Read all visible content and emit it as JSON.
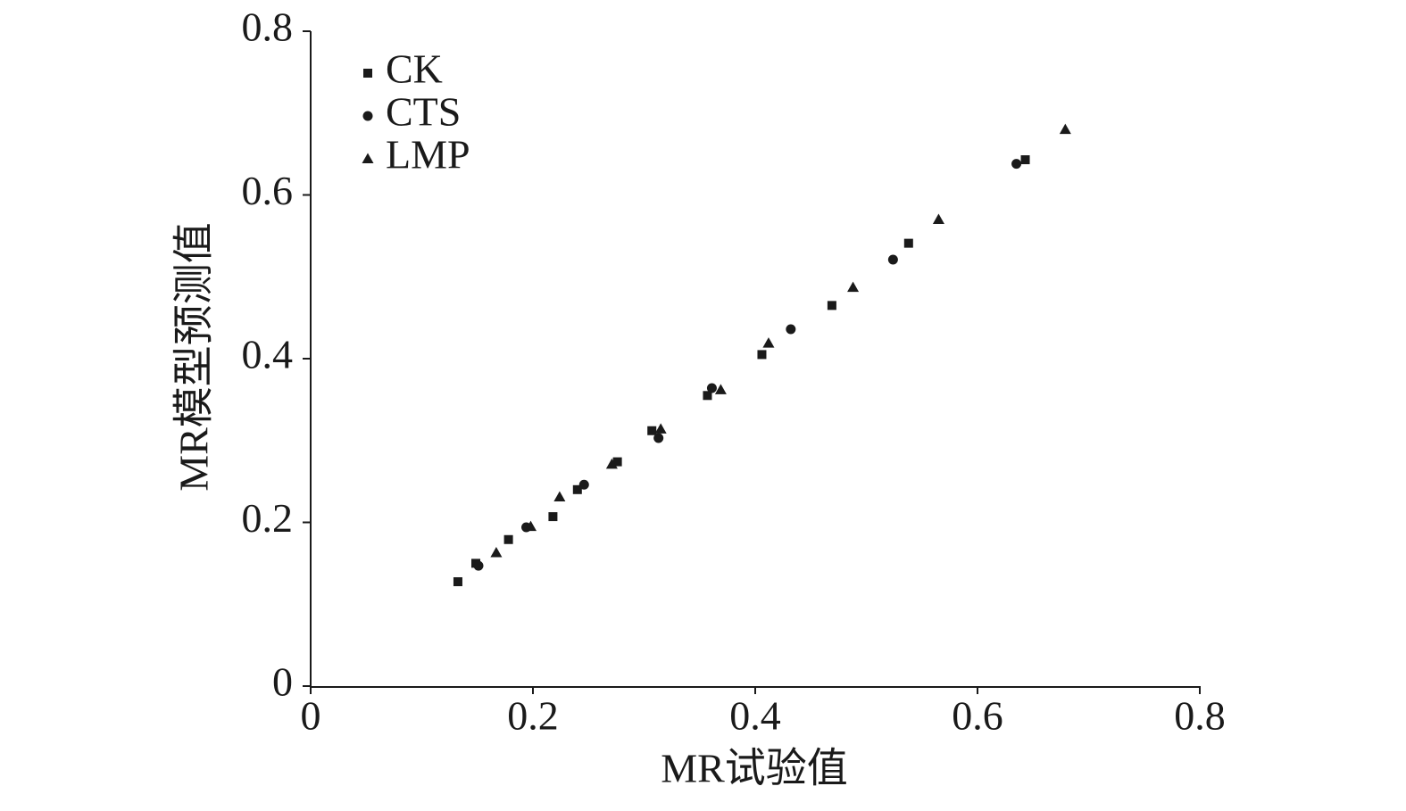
{
  "chart_data": {
    "type": "scatter",
    "x_label": "MR试验值",
    "y_label": "MR模型预测值",
    "xlim": [
      0,
      0.8
    ],
    "ylim": [
      0,
      0.8
    ],
    "xticks": [
      0,
      0.2,
      0.4,
      0.6,
      0.8
    ],
    "yticks": [
      0,
      0.2,
      0.4,
      0.6,
      0.8
    ],
    "grid": false,
    "legend": "top-left",
    "series": [
      {
        "name": "CK",
        "color": "#1a1a1a",
        "marker": "square",
        "x": [
          0.1325,
          0.1486,
          0.178,
          0.218,
          0.24,
          0.276,
          0.307,
          0.357,
          0.406,
          0.469,
          0.538,
          0.643
        ],
        "values": [
          0.1275,
          0.15,
          0.179,
          0.207,
          0.24,
          0.274,
          0.312,
          0.355,
          0.405,
          0.465,
          0.541,
          0.643
        ]
      },
      {
        "name": "CTS",
        "color": "#1a1a1a",
        "marker": "circle",
        "x": [
          0.151,
          0.194,
          0.246,
          0.313,
          0.361,
          0.432,
          0.524,
          0.635
        ],
        "values": [
          0.147,
          0.194,
          0.246,
          0.303,
          0.364,
          0.436,
          0.521,
          0.638
        ]
      },
      {
        "name": "LMP",
        "color": "#1a1a1a",
        "marker": "triangle",
        "x": [
          0.167,
          0.198,
          0.224,
          0.271,
          0.315,
          0.369,
          0.412,
          0.488,
          0.565,
          0.679
        ],
        "values": [
          0.163,
          0.195,
          0.231,
          0.271,
          0.314,
          0.362,
          0.419,
          0.487,
          0.57,
          0.68
        ]
      }
    ]
  }
}
